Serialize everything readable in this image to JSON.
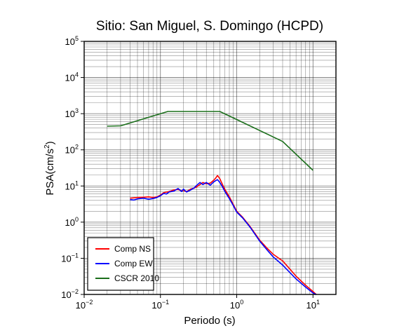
{
  "chart_data": {
    "type": "line",
    "title": "Sitio: San Miguel, S. Domingo (HCPD)",
    "xlabel": "Periodo (s)",
    "ylabel": "PSA(cm/s²)",
    "ylabel_main": "PSA(cm/s",
    "ylabel_sup": "2",
    "ylabel_end": ")",
    "x_scale": "log",
    "y_scale": "log",
    "xlim": [
      0.01,
      20
    ],
    "ylim": [
      0.01,
      100000
    ],
    "grid": true,
    "legend_position": "bottom-left",
    "x_ticks": [
      {
        "base": "10",
        "exp": "−2",
        "value": 0.01
      },
      {
        "base": "10",
        "exp": "−1",
        "value": 0.1
      },
      {
        "base": "10",
        "exp": "0",
        "value": 1
      },
      {
        "base": "10",
        "exp": "1",
        "value": 10
      }
    ],
    "y_ticks": [
      {
        "base": "10",
        "exp": "−2",
        "value": 0.01
      },
      {
        "base": "10",
        "exp": "−1",
        "value": 0.1
      },
      {
        "base": "10",
        "exp": "0",
        "value": 1
      },
      {
        "base": "10",
        "exp": "1",
        "value": 10
      },
      {
        "base": "10",
        "exp": "2",
        "value": 100
      },
      {
        "base": "10",
        "exp": "3",
        "value": 1000
      },
      {
        "base": "10",
        "exp": "4",
        "value": 10000
      },
      {
        "base": "10",
        "exp": "5",
        "value": 100000
      }
    ],
    "series": [
      {
        "name": "Comp NS",
        "color": "#ff0000",
        "x": [
          0.04,
          0.045,
          0.05,
          0.06,
          0.07,
          0.08,
          0.09,
          0.1,
          0.11,
          0.12,
          0.13,
          0.15,
          0.17,
          0.19,
          0.2,
          0.22,
          0.25,
          0.28,
          0.3,
          0.33,
          0.36,
          0.4,
          0.45,
          0.5,
          0.53,
          0.56,
          0.6,
          0.65,
          0.7,
          0.8,
          0.9,
          1.0,
          1.2,
          1.5,
          2.0,
          2.5,
          3.0,
          4.0,
          5.0,
          6.0,
          8.0,
          10.0,
          11.0
        ],
        "y": [
          4.6,
          4.7,
          4.8,
          4.9,
          5.0,
          4.8,
          5.0,
          5.6,
          6.5,
          6.8,
          7.0,
          7.8,
          8.0,
          7.3,
          7.5,
          7.0,
          8.2,
          8.8,
          9.5,
          11.0,
          12.5,
          11.5,
          12.0,
          14.5,
          16.5,
          19.5,
          16.0,
          11.0,
          8.0,
          5.0,
          3.1,
          2.0,
          1.35,
          0.75,
          0.32,
          0.19,
          0.13,
          0.085,
          0.05,
          0.032,
          0.018,
          0.012,
          0.01
        ]
      },
      {
        "name": "Comp EW",
        "color": "#0000ff",
        "x": [
          0.04,
          0.045,
          0.05,
          0.06,
          0.07,
          0.08,
          0.09,
          0.1,
          0.11,
          0.12,
          0.13,
          0.15,
          0.17,
          0.19,
          0.2,
          0.22,
          0.25,
          0.28,
          0.3,
          0.33,
          0.36,
          0.4,
          0.45,
          0.5,
          0.53,
          0.56,
          0.6,
          0.65,
          0.7,
          0.8,
          0.9,
          1.0,
          1.2,
          1.5,
          2.0,
          2.5,
          3.0,
          4.0,
          5.0,
          6.0,
          8.0,
          10.0,
          11.0
        ],
        "y": [
          4.2,
          4.1,
          4.4,
          4.6,
          4.3,
          4.5,
          4.8,
          5.4,
          6.2,
          6.0,
          6.8,
          7.2,
          8.5,
          7.0,
          8.2,
          6.8,
          7.8,
          9.0,
          10.5,
          12.5,
          11.0,
          12.5,
          10.5,
          13.0,
          14.0,
          15.0,
          12.5,
          9.5,
          7.0,
          4.5,
          2.9,
          1.9,
          1.3,
          0.72,
          0.3,
          0.17,
          0.11,
          0.065,
          0.04,
          0.027,
          0.016,
          0.011,
          0.01
        ]
      },
      {
        "name": "CSCR 2010",
        "color": "#1a6e1a",
        "x": [
          0.02,
          0.03,
          0.125,
          0.6,
          4.0,
          10.0
        ],
        "y": [
          450,
          460,
          1150,
          1150,
          170,
          27
        ]
      }
    ]
  }
}
